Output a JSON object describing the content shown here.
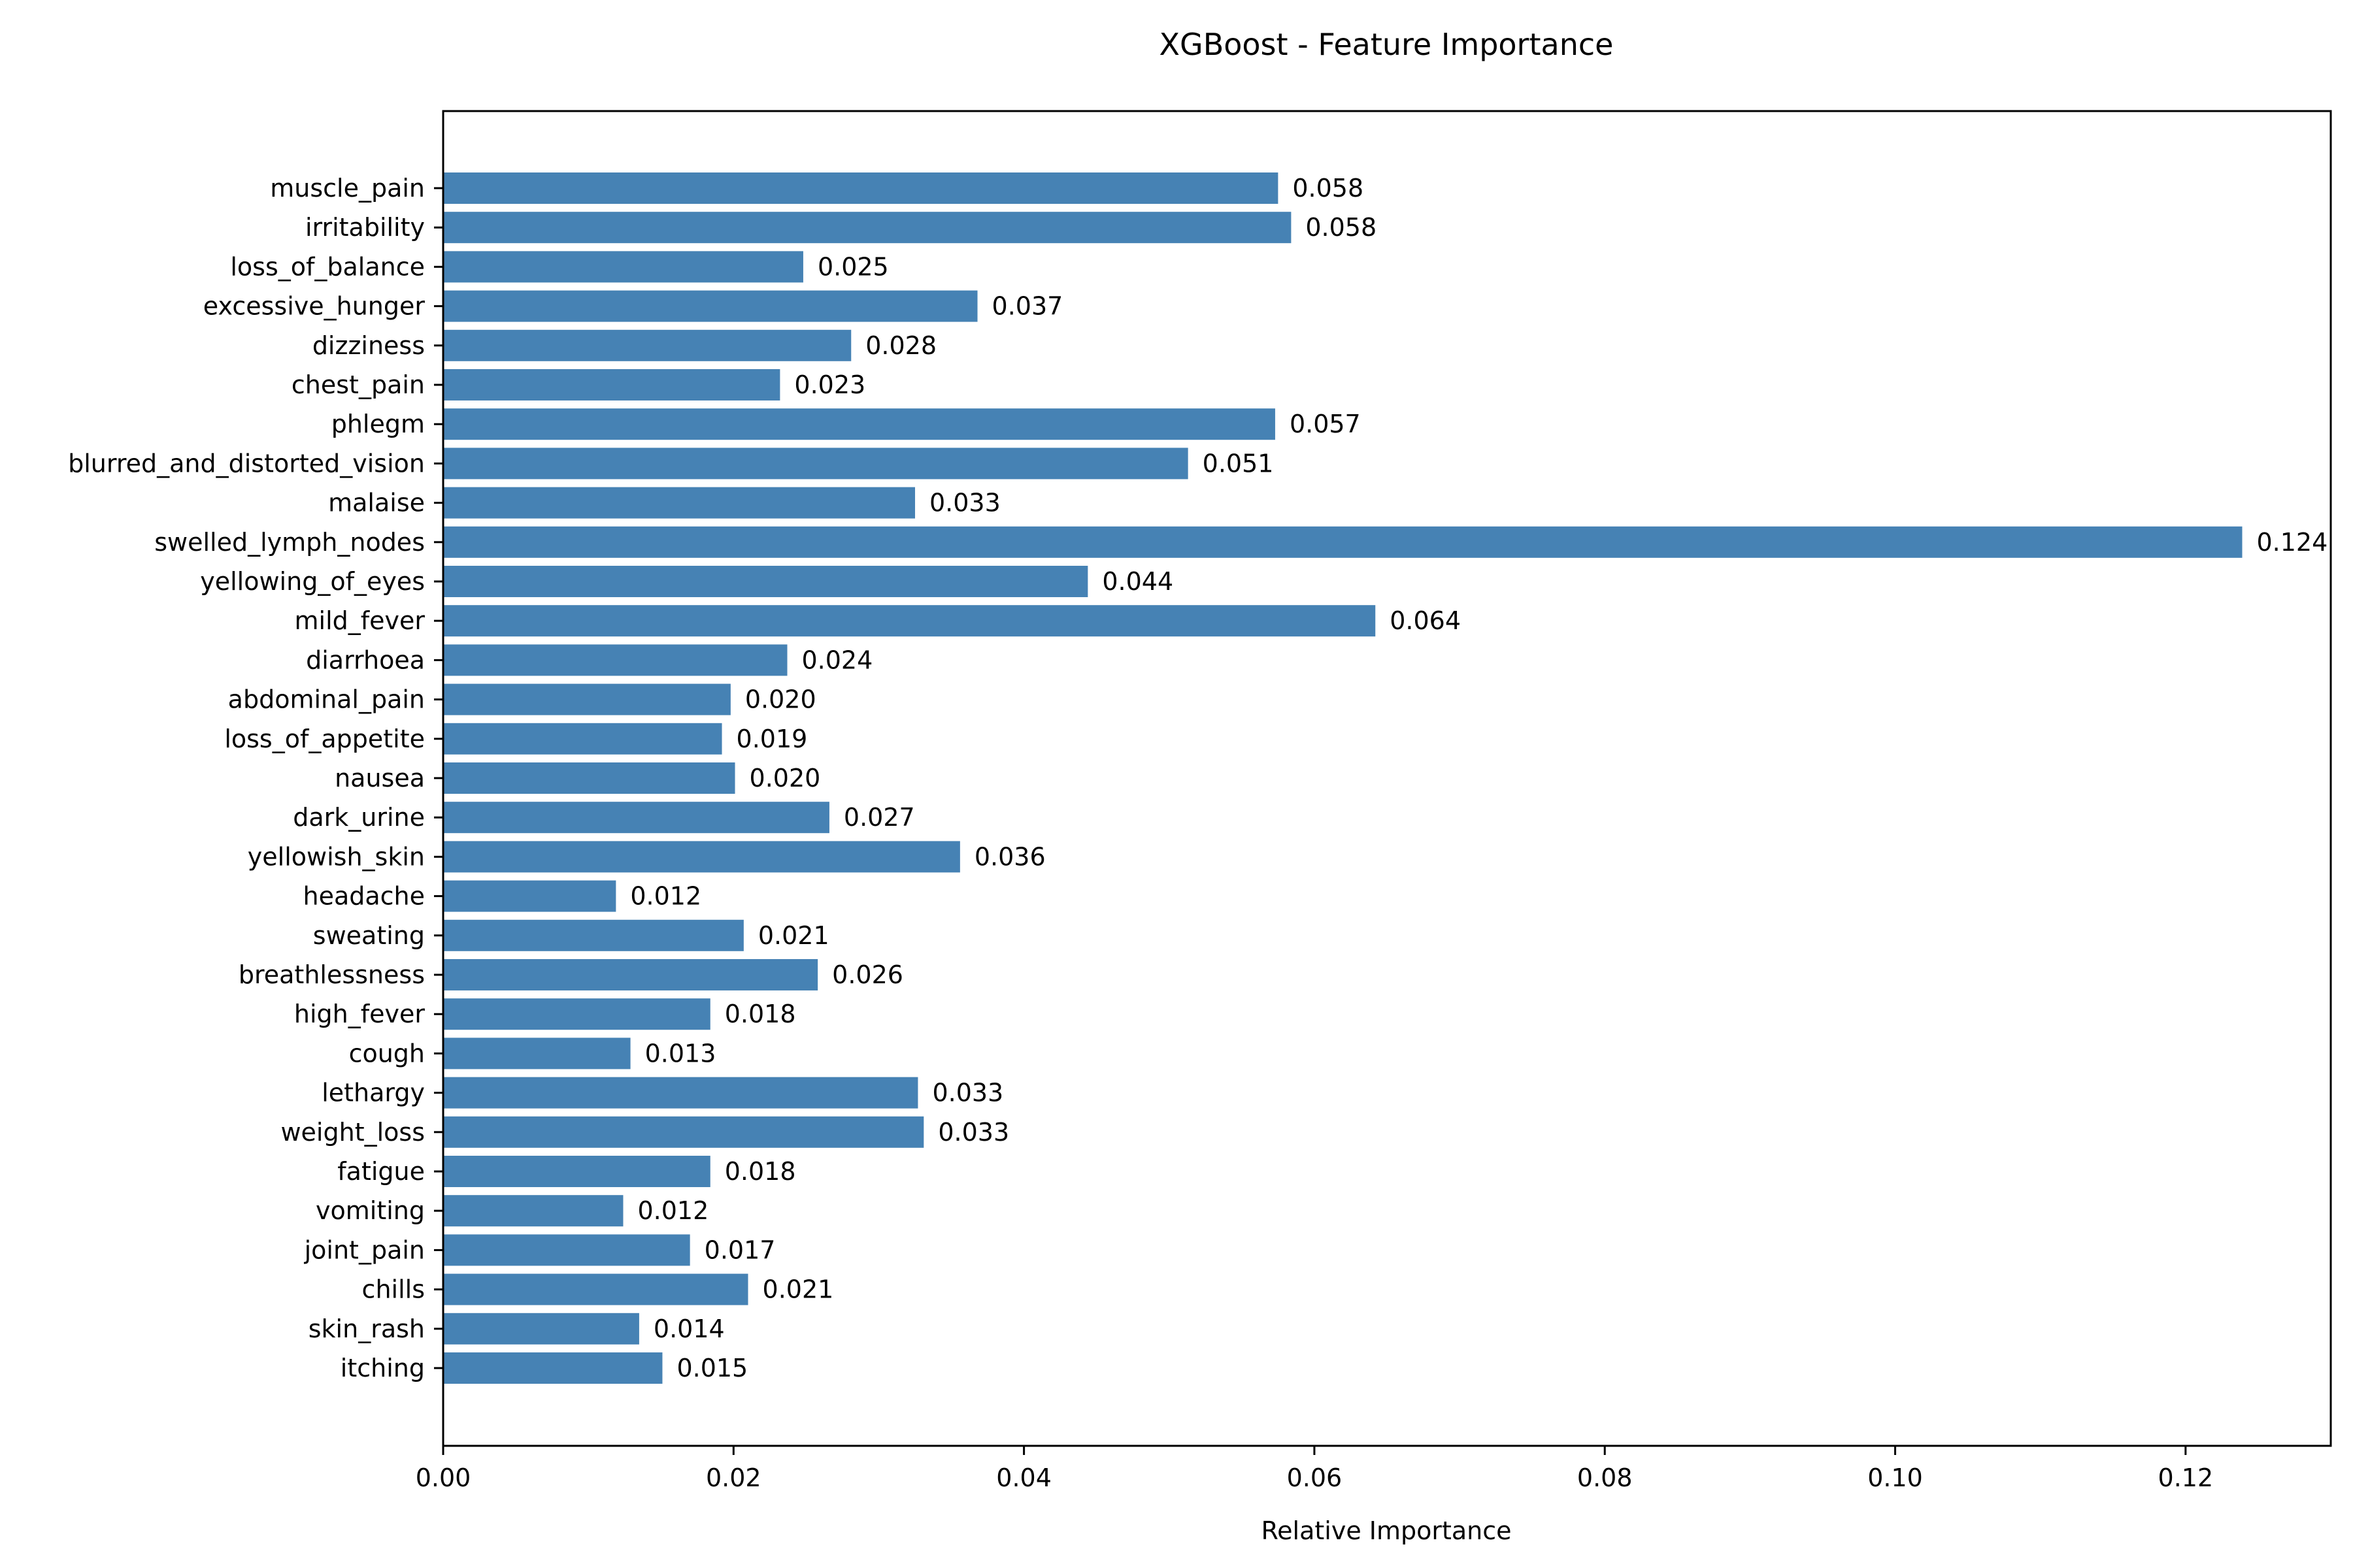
{
  "chart_data": {
    "type": "bar",
    "orientation": "horizontal",
    "title": "XGBoost - Feature Importance",
    "xlabel": "Relative Importance",
    "ylabel": "",
    "xlim": [
      0,
      0.13
    ],
    "xticks": [
      0.0,
      0.02,
      0.04,
      0.06,
      0.08,
      0.1,
      0.12
    ],
    "xtick_labels": [
      "0.00",
      "0.02",
      "0.04",
      "0.06",
      "0.08",
      "0.10",
      "0.12"
    ],
    "bar_color": "#4682b4",
    "grid": false,
    "categories": [
      "muscle_pain",
      "irritability",
      "loss_of_balance",
      "excessive_hunger",
      "dizziness",
      "chest_pain",
      "phlegm",
      "blurred_and_distorted_vision",
      "malaise",
      "swelled_lymph_nodes",
      "yellowing_of_eyes",
      "mild_fever",
      "diarrhoea",
      "abdominal_pain",
      "loss_of_appetite",
      "nausea",
      "dark_urine",
      "yellowish_skin",
      "headache",
      "sweating",
      "breathlessness",
      "high_fever",
      "cough",
      "lethargy",
      "weight_loss",
      "fatigue",
      "vomiting",
      "joint_pain",
      "chills",
      "skin_rash",
      "itching"
    ],
    "values": [
      0.0575,
      0.0584,
      0.0248,
      0.0368,
      0.0281,
      0.0232,
      0.0573,
      0.0513,
      0.0325,
      0.1239,
      0.0444,
      0.0642,
      0.0237,
      0.0198,
      0.0192,
      0.0201,
      0.0266,
      0.0356,
      0.0119,
      0.0207,
      0.0258,
      0.0184,
      0.0129,
      0.0327,
      0.0331,
      0.0184,
      0.0124,
      0.017,
      0.021,
      0.0135,
      0.0151
    ],
    "value_labels": [
      "0.058",
      "0.058",
      "0.025",
      "0.037",
      "0.028",
      "0.023",
      "0.057",
      "0.051",
      "0.033",
      "0.124",
      "0.044",
      "0.064",
      "0.024",
      "0.020",
      "0.019",
      "0.020",
      "0.027",
      "0.036",
      "0.012",
      "0.021",
      "0.026",
      "0.018",
      "0.013",
      "0.033",
      "0.033",
      "0.018",
      "0.012",
      "0.017",
      "0.021",
      "0.014",
      "0.015"
    ]
  }
}
